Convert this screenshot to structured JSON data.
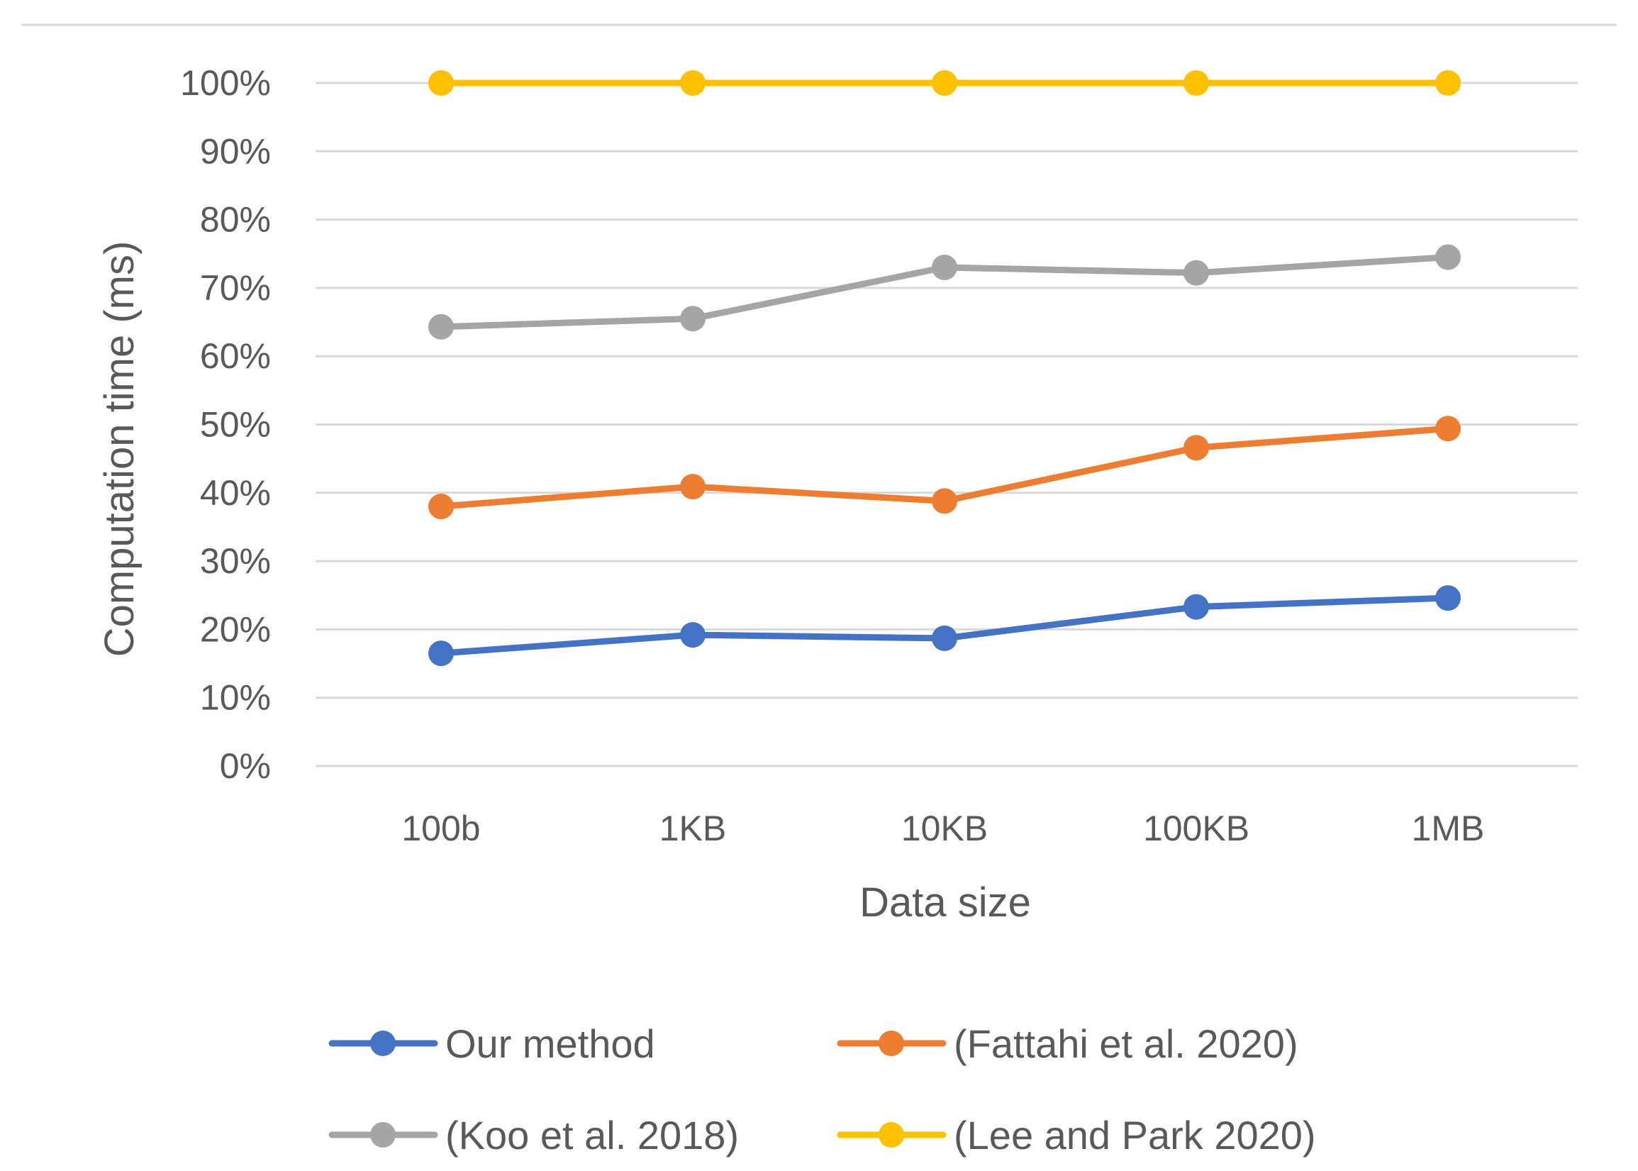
{
  "chart_data": {
    "type": "line",
    "title": "",
    "xlabel": "Data size",
    "ylabel": "Computation time (ms)",
    "categories": [
      "100b",
      "1KB",
      "10KB",
      "100KB",
      "1MB"
    ],
    "ylim": [
      0,
      100
    ],
    "yticks": [
      0,
      10,
      20,
      30,
      40,
      50,
      60,
      70,
      80,
      90,
      100
    ],
    "ytick_labels": [
      "0%",
      "10%",
      "20%",
      "30%",
      "40%",
      "50%",
      "60%",
      "70%",
      "80%",
      "90%",
      "100%"
    ],
    "grid": true,
    "legend_position": "bottom",
    "series": [
      {
        "name": "Our method",
        "color": "#4472C4",
        "values": [
          16.5,
          19.2,
          18.7,
          23.3,
          24.6
        ]
      },
      {
        "name": "(Fattahi et al. 2020)",
        "color": "#ED7D31",
        "values": [
          38.0,
          40.9,
          38.8,
          46.6,
          49.4
        ]
      },
      {
        "name": "(Koo et al. 2018)",
        "color": "#A5A5A5",
        "values": [
          64.3,
          65.5,
          73.0,
          72.2,
          74.5
        ]
      },
      {
        "name": "(Lee and Park 2020)",
        "color": "#FFC000",
        "values": [
          100,
          100,
          100,
          100,
          100
        ]
      }
    ]
  }
}
